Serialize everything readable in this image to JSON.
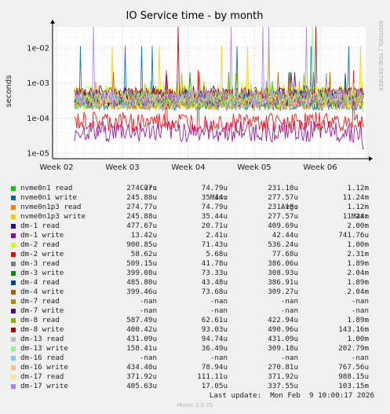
{
  "chart_data": {
    "type": "line",
    "title": "IO Service time - by month",
    "ylabel": "seconds",
    "yscale": "log",
    "ylim": [
      7e-06,
      0.04
    ],
    "yticks": [
      {
        "value": 1e-05,
        "label": "1e-05"
      },
      {
        "value": 0.0001,
        "label": "1e-04"
      },
      {
        "value": 0.001,
        "label": "1e-03"
      },
      {
        "value": 0.01,
        "label": "1e-02"
      }
    ],
    "xticks": [
      "Week 02",
      "Week 03",
      "Week 04",
      "Week 05",
      "Week 06"
    ],
    "grid": true,
    "side_label": "RRDTOOL / TOBI OETIKER",
    "columns": [
      "Cur:",
      "Min:",
      "Avg:",
      "Max:"
    ],
    "series": [
      {
        "name": "nvme0n1 read",
        "color": "#00cc00",
        "cur": "274.77u",
        "min": "74.79u",
        "avg": "231.18u",
        "max": "1.12m"
      },
      {
        "name": "nvme0n1 write",
        "color": "#0066b3",
        "cur": "245.88u",
        "min": "35.44u",
        "avg": "277.57u",
        "max": "11.24m"
      },
      {
        "name": "nvme0n1p3 read",
        "color": "#ff8000",
        "cur": "274.77u",
        "min": "74.79u",
        "avg": "231.18u",
        "max": "1.12m"
      },
      {
        "name": "nvme0n1p3 write",
        "color": "#ffcc00",
        "cur": "245.88u",
        "min": "35.44u",
        "avg": "277.57u",
        "max": "11.24m"
      },
      {
        "name": "dm-1 read",
        "color": "#330099",
        "cur": "477.67u",
        "min": "20.71u",
        "avg": "409.69u",
        "max": "2.00m"
      },
      {
        "name": "dm-1 write",
        "color": "#990099",
        "cur": "13.42u",
        "min": "2.41u",
        "avg": "42.44u",
        "max": "741.76u"
      },
      {
        "name": "dm-2 read",
        "color": "#ccff00",
        "cur": "900.85u",
        "min": "71.43u",
        "avg": "536.24u",
        "max": "1.00m"
      },
      {
        "name": "dm-2 write",
        "color": "#ff0000",
        "cur": "58.62u",
        "min": "5.68u",
        "avg": "77.68u",
        "max": "2.31m"
      },
      {
        "name": "dm-3 read",
        "color": "#808080",
        "cur": "509.15u",
        "min": "41.78u",
        "avg": "386.06u",
        "max": "1.89m"
      },
      {
        "name": "dm-3 write",
        "color": "#008f00",
        "cur": "399.08u",
        "min": "73.33u",
        "avg": "308.93u",
        "max": "2.04m"
      },
      {
        "name": "dm-4 read",
        "color": "#00487d",
        "cur": "485.80u",
        "min": "43.48u",
        "avg": "386.91u",
        "max": "1.89m"
      },
      {
        "name": "dm-4 write",
        "color": "#b35a00",
        "cur": "399.46u",
        "min": "73.68u",
        "avg": "309.27u",
        "max": "2.04m"
      },
      {
        "name": "dm-7 read",
        "color": "#b38f00",
        "cur": "-nan",
        "min": "-nan",
        "avg": "-nan",
        "max": "-nan"
      },
      {
        "name": "dm-7 write",
        "color": "#6b006b",
        "cur": "-nan",
        "min": "-nan",
        "avg": "-nan",
        "max": "-nan"
      },
      {
        "name": "dm-8 read",
        "color": "#8fb300",
        "cur": "587.49u",
        "min": "62.61u",
        "avg": "422.94u",
        "max": "1.89m"
      },
      {
        "name": "dm-8 write",
        "color": "#b30000",
        "cur": "400.42u",
        "min": "93.03u",
        "avg": "490.96u",
        "max": "143.16m"
      },
      {
        "name": "dm-13 read",
        "color": "#bebebe",
        "cur": "431.09u",
        "min": "94.74u",
        "avg": "431.09u",
        "max": "1.00m"
      },
      {
        "name": "dm-13 write",
        "color": "#80ff80",
        "cur": "158.41u",
        "min": "36.49u",
        "avg": "309.18u",
        "max": "202.79m"
      },
      {
        "name": "dm-16 read",
        "color": "#80c9ff",
        "cur": "-nan",
        "min": "-nan",
        "avg": "-nan",
        "max": "-nan"
      },
      {
        "name": "dm-16 write",
        "color": "#ffc080",
        "cur": "434.40u",
        "min": "78.94u",
        "avg": "270.81u",
        "max": "767.56u"
      },
      {
        "name": "dm-17 read",
        "color": "#ffe680",
        "cur": "371.92u",
        "min": "111.11u",
        "avg": "371.92u",
        "max": "988.15u"
      },
      {
        "name": "dm-17 write",
        "color": "#aa80ff",
        "cur": "405.63u",
        "min": "17.05u",
        "avg": "337.55u",
        "max": "103.15m"
      }
    ],
    "last_update": "Last update:  Mon Feb  9 10:00:17 2026",
    "generator": "Munin 2.0.75"
  }
}
